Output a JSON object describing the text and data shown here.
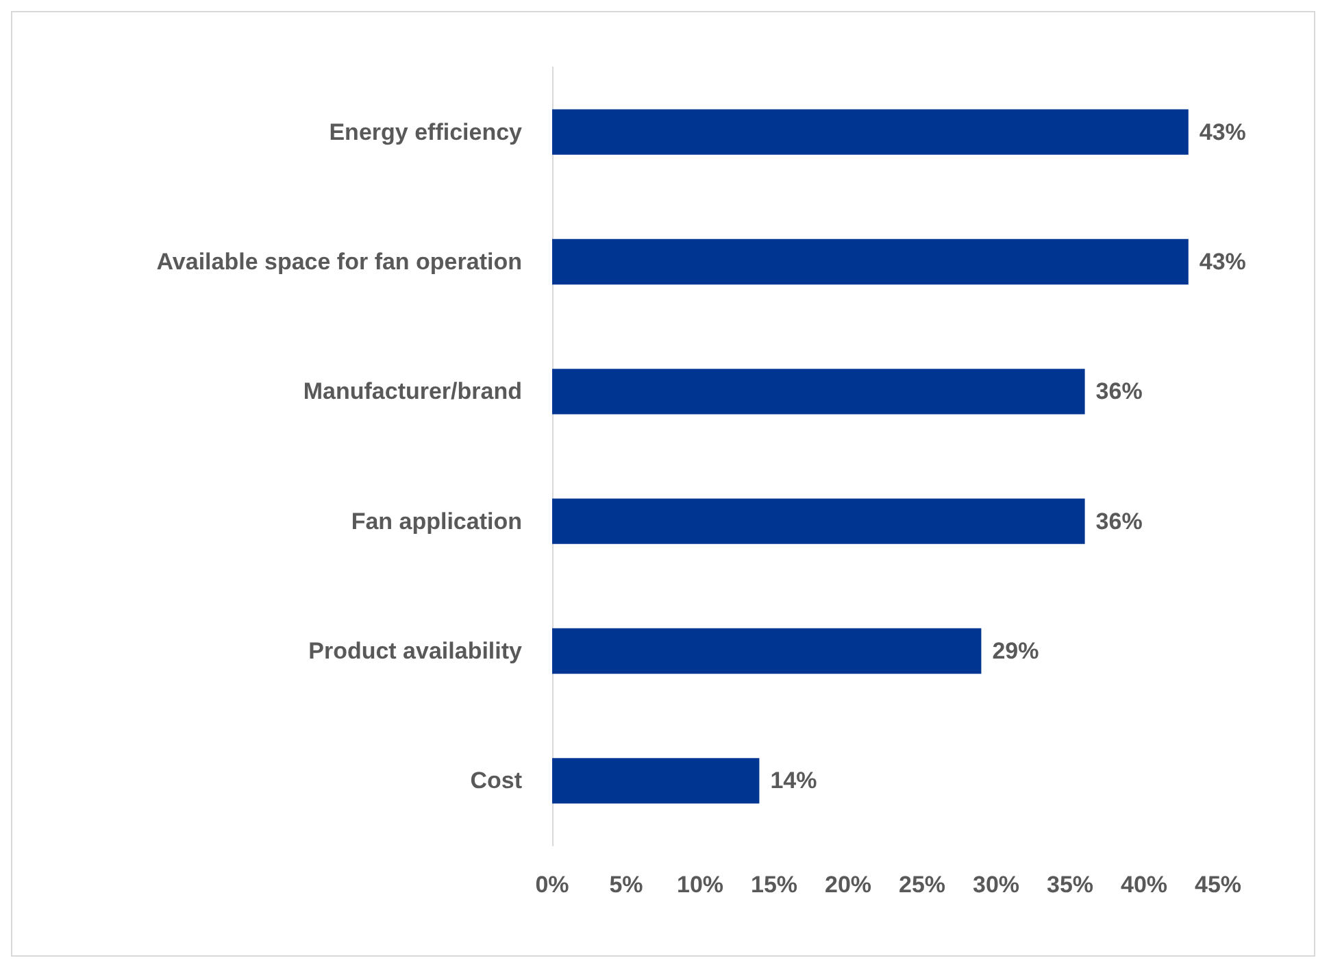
{
  "chart_data": {
    "type": "bar",
    "orientation": "horizontal",
    "categories": [
      "Energy efficiency",
      "Available space for fan operation",
      "Manufacturer/brand",
      "Fan application",
      "Product availability",
      "Cost"
    ],
    "values": [
      43,
      43,
      36,
      36,
      29,
      14
    ],
    "value_labels": [
      "43%",
      "43%",
      "36%",
      "36%",
      "29%",
      "14%"
    ],
    "color": "#003591",
    "xlim": [
      0,
      45
    ],
    "xticks": [
      {
        "value": 0,
        "label": "0%"
      },
      {
        "value": 5,
        "label": "5%"
      },
      {
        "value": 10,
        "label": "10%"
      },
      {
        "value": 15,
        "label": "15%"
      },
      {
        "value": 20,
        "label": "20%"
      },
      {
        "value": 25,
        "label": "25%"
      },
      {
        "value": 30,
        "label": "30%"
      },
      {
        "value": 35,
        "label": "35%"
      },
      {
        "value": 40,
        "label": "40%"
      },
      {
        "value": 45,
        "label": "45%"
      }
    ],
    "grid": false
  }
}
